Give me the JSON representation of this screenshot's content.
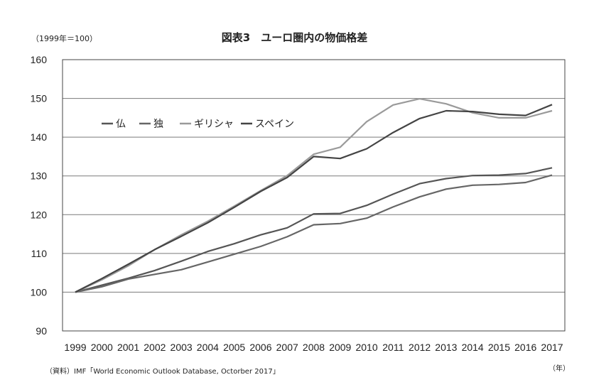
{
  "chart_data": {
    "type": "line",
    "title": "図表3　ユーロ圏内の物価格差",
    "unit_label": "（1999年＝100）",
    "xlabel_unit": "（年）",
    "source": "（資料）IMF「World Economic Outlook Database, Octorber 2017」",
    "x": [
      "1999",
      "2000",
      "2001",
      "2002",
      "2003",
      "2004",
      "2005",
      "2006",
      "2007",
      "2008",
      "2009",
      "2010",
      "2011",
      "2012",
      "2013",
      "2014",
      "2015",
      "2016",
      "2017"
    ],
    "ylim": [
      90,
      160
    ],
    "yticks": [
      90,
      100,
      110,
      120,
      130,
      140,
      150,
      160
    ],
    "grid": true,
    "legend_position": "top-left",
    "series": [
      {
        "name": "仏",
        "color": "#555555",
        "values": [
          100,
          101.8,
          103.6,
          105.6,
          108.0,
          110.5,
          112.5,
          114.8,
          116.6,
          120.2,
          120.3,
          122.4,
          125.3,
          128.0,
          129.3,
          130.1,
          130.2,
          130.6,
          132.1
        ]
      },
      {
        "name": "独",
        "color": "#666666",
        "values": [
          100,
          101.4,
          103.4,
          104.6,
          105.8,
          107.8,
          109.8,
          111.8,
          114.3,
          117.4,
          117.7,
          119.1,
          122.0,
          124.6,
          126.6,
          127.6,
          127.8,
          128.3,
          130.2
        ]
      },
      {
        "name": "ギリシャ",
        "color": "#9a9a9a",
        "values": [
          100,
          103.2,
          106.8,
          111.0,
          114.8,
          118.3,
          122.2,
          126.2,
          130.1,
          135.6,
          137.4,
          144.0,
          148.3,
          149.9,
          148.6,
          146.3,
          145.0,
          145.0,
          146.8
        ]
      },
      {
        "name": "スペイン",
        "color": "#444444",
        "values": [
          100,
          103.5,
          107.2,
          111.0,
          114.4,
          117.9,
          121.9,
          126.0,
          129.6,
          135.0,
          134.5,
          137.0,
          141.2,
          144.8,
          146.8,
          146.6,
          145.9,
          145.6,
          148.4
        ]
      }
    ]
  }
}
